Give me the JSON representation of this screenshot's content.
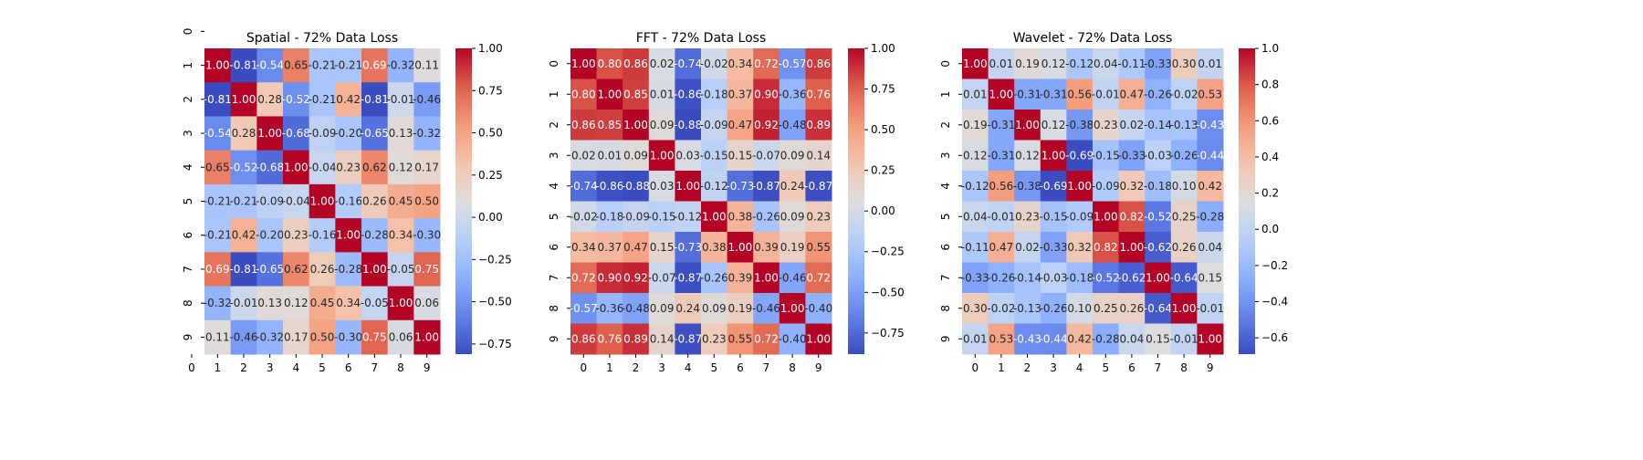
{
  "chart_data": [
    {
      "type": "heatmap",
      "title": "Spatial - 72% Data Loss",
      "xlabel": "",
      "ylabel": "",
      "x_ticks": [
        "0",
        "1",
        "2",
        "3",
        "4",
        "5",
        "6",
        "7",
        "8",
        "9"
      ],
      "y_ticks": [
        "0",
        "1",
        "2",
        "3",
        "4",
        "5",
        "6",
        "7",
        "8",
        "9"
      ],
      "colormap": "coolwarm",
      "vmin": -0.81,
      "vmax": 1.0,
      "colorbar_ticks": [
        1.0,
        0.75,
        0.5,
        0.25,
        0.0,
        -0.25,
        -0.5,
        -0.75
      ],
      "colorbar_tick_labels": [
        "1.00",
        "0.75",
        "0.50",
        "0.25",
        "0.00",
        "−0.25",
        "−0.50",
        "−0.75"
      ],
      "x_tick_positions": "edges",
      "matrix": [
        [
          null,
          null,
          null,
          null,
          null,
          null,
          null,
          null,
          null,
          null
        ],
        [
          null,
          1.0,
          -0.81,
          -0.54,
          0.65,
          -0.21,
          -0.21,
          0.69,
          -0.32,
          0.11
        ],
        [
          null,
          -0.81,
          1.0,
          0.28,
          -0.52,
          -0.21,
          0.42,
          -0.81,
          -0.01,
          -0.46
        ],
        [
          null,
          -0.54,
          0.28,
          1.0,
          -0.68,
          -0.09,
          -0.2,
          -0.65,
          0.13,
          -0.32
        ],
        [
          null,
          0.65,
          -0.52,
          -0.68,
          1.0,
          -0.04,
          0.23,
          0.62,
          0.12,
          0.17
        ],
        [
          null,
          -0.21,
          -0.21,
          -0.09,
          -0.04,
          1.0,
          -0.16,
          0.26,
          0.45,
          0.5
        ],
        [
          null,
          -0.21,
          0.42,
          -0.2,
          0.23,
          -0.16,
          1.0,
          -0.28,
          0.34,
          -0.3
        ],
        [
          null,
          0.69,
          -0.81,
          -0.65,
          0.62,
          0.26,
          -0.28,
          1.0,
          -0.05,
          0.75
        ],
        [
          null,
          -0.32,
          -0.01,
          0.13,
          0.12,
          0.45,
          0.34,
          -0.05,
          1.0,
          0.06
        ],
        [
          null,
          0.11,
          -0.46,
          -0.32,
          0.17,
          0.5,
          -0.3,
          0.75,
          0.06,
          1.0
        ]
      ]
    },
    {
      "type": "heatmap",
      "title": "FFT - 72% Data Loss",
      "xlabel": "",
      "ylabel": "",
      "x_ticks": [
        "0",
        "1",
        "2",
        "3",
        "4",
        "5",
        "6",
        "7",
        "8",
        "9"
      ],
      "y_ticks": [
        "0",
        "1",
        "2",
        "3",
        "4",
        "5",
        "6",
        "7",
        "8",
        "9"
      ],
      "colormap": "coolwarm",
      "vmin": -0.88,
      "vmax": 1.0,
      "colorbar_ticks": [
        1.0,
        0.75,
        0.5,
        0.25,
        0.0,
        -0.25,
        -0.5,
        -0.75
      ],
      "colorbar_tick_labels": [
        "1.00",
        "0.75",
        "0.50",
        "0.25",
        "0.00",
        "−0.25",
        "−0.50",
        "−0.75"
      ],
      "x_tick_positions": "centers",
      "matrix": [
        [
          1.0,
          0.8,
          0.86,
          0.02,
          -0.74,
          -0.02,
          0.34,
          0.72,
          -0.57,
          0.86
        ],
        [
          0.8,
          1.0,
          0.85,
          0.01,
          -0.86,
          -0.18,
          0.37,
          0.9,
          -0.36,
          0.76
        ],
        [
          0.86,
          0.85,
          1.0,
          0.09,
          -0.88,
          -0.09,
          0.47,
          0.92,
          -0.48,
          0.89
        ],
        [
          0.02,
          0.01,
          0.09,
          1.0,
          0.03,
          -0.15,
          0.15,
          -0.07,
          0.09,
          0.14
        ],
        [
          -0.74,
          -0.86,
          -0.88,
          0.03,
          1.0,
          -0.12,
          -0.73,
          -0.87,
          0.24,
          -0.87
        ],
        [
          -0.02,
          -0.18,
          -0.09,
          -0.15,
          -0.12,
          1.0,
          0.38,
          -0.26,
          0.09,
          0.23
        ],
        [
          0.34,
          0.37,
          0.47,
          0.15,
          -0.73,
          0.38,
          1.0,
          0.39,
          0.19,
          0.55
        ],
        [
          0.72,
          0.9,
          0.92,
          -0.07,
          -0.87,
          -0.26,
          0.39,
          1.0,
          -0.46,
          0.72
        ],
        [
          -0.57,
          -0.36,
          -0.48,
          0.09,
          0.24,
          0.09,
          0.19,
          -0.46,
          1.0,
          -0.4
        ],
        [
          0.86,
          0.76,
          0.89,
          0.14,
          -0.87,
          0.23,
          0.55,
          0.72,
          -0.4,
          1.0
        ]
      ]
    },
    {
      "type": "heatmap",
      "title": "Wavelet - 72% Data Loss",
      "xlabel": "",
      "ylabel": "",
      "x_ticks": [
        "0",
        "1",
        "2",
        "3",
        "4",
        "5",
        "6",
        "7",
        "8",
        "9"
      ],
      "y_ticks": [
        "0",
        "1",
        "2",
        "3",
        "4",
        "5",
        "6",
        "7",
        "8",
        "9"
      ],
      "colormap": "coolwarm",
      "vmin": -0.69,
      "vmax": 1.0,
      "colorbar_ticks": [
        1.0,
        0.8,
        0.6,
        0.4,
        0.2,
        0.0,
        -0.2,
        -0.4,
        -0.6
      ],
      "colorbar_tick_labels": [
        "1.0",
        "0.8",
        "0.6",
        "0.4",
        "0.2",
        "0.0",
        "−0.2",
        "−0.4",
        "−0.6"
      ],
      "x_tick_positions": "centers",
      "matrix": [
        [
          1.0,
          0.01,
          0.19,
          0.12,
          -0.12,
          0.04,
          -0.11,
          -0.33,
          0.3,
          0.01
        ],
        [
          0.01,
          1.0,
          -0.31,
          -0.31,
          0.56,
          -0.01,
          0.47,
          -0.26,
          -0.02,
          0.53
        ],
        [
          0.19,
          -0.31,
          1.0,
          0.12,
          -0.38,
          0.23,
          0.02,
          -0.14,
          -0.13,
          -0.43
        ],
        [
          0.12,
          -0.31,
          0.12,
          1.0,
          -0.69,
          -0.15,
          -0.33,
          -0.03,
          -0.26,
          -0.44
        ],
        [
          -0.12,
          0.56,
          -0.38,
          -0.69,
          1.0,
          -0.09,
          0.32,
          -0.18,
          0.1,
          0.42
        ],
        [
          0.04,
          -0.01,
          0.23,
          -0.15,
          -0.09,
          1.0,
          0.82,
          -0.52,
          0.25,
          -0.28
        ],
        [
          -0.11,
          0.47,
          0.02,
          -0.33,
          0.32,
          0.82,
          1.0,
          -0.62,
          0.26,
          0.04
        ],
        [
          -0.33,
          -0.26,
          -0.14,
          -0.03,
          -0.18,
          -0.52,
          -0.62,
          1.0,
          -0.64,
          0.15
        ],
        [
          0.3,
          -0.02,
          -0.13,
          -0.26,
          0.1,
          0.25,
          0.26,
          -0.64,
          1.0,
          -0.01
        ],
        [
          0.01,
          0.53,
          -0.43,
          -0.44,
          0.42,
          -0.28,
          0.04,
          0.15,
          -0.01,
          1.0
        ]
      ]
    }
  ]
}
